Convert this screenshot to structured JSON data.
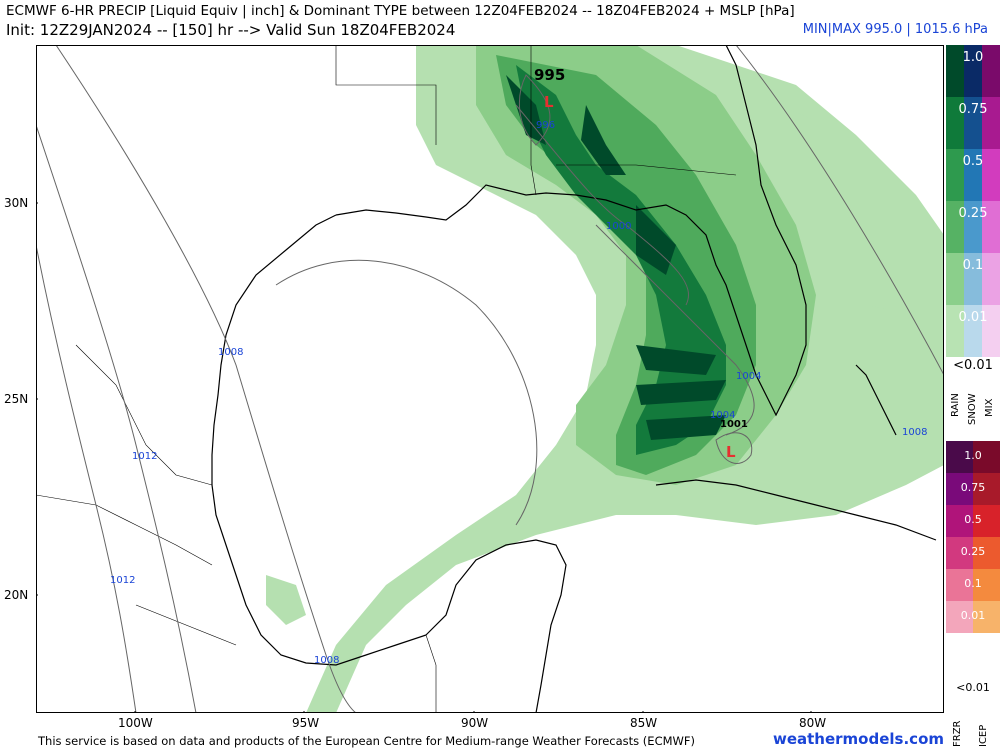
{
  "header": {
    "title": "ECMWF 6-HR PRECIP [Liquid Equiv | inch] & Dominant TYPE between 12Z04FEB2024 -- 18Z04FEB2024 + MSLP [hPa]",
    "init": "Init: 12Z29JAN2024 -- [150] hr --> Valid Sun 18Z04FEB2024",
    "minmax": "MIN|MAX 995.0 | 1015.6 hPa"
  },
  "map": {
    "lat_labels": [
      "30N",
      "25N",
      "20N"
    ],
    "lon_labels": [
      "100W",
      "95W",
      "90W",
      "85W",
      "80W"
    ],
    "pressure_labels": {
      "p995_big": "995",
      "p996": "996",
      "p1000": "1000",
      "p1004_a": "1004",
      "p1004_b": "1004",
      "p1001": "1001",
      "p1008_a": "1008",
      "p1008_b": "1008",
      "p1008_c": "1008",
      "p1012_a": "1012",
      "p1012_b": "1012"
    },
    "low_symbol": "L"
  },
  "legend": {
    "upper_values": [
      "1.0",
      "0.75",
      "0.5",
      "0.25",
      "0.1",
      "0.01"
    ],
    "upper_lt": "<0.01",
    "upper_types": [
      "RAIN",
      "SNOW",
      "MIX"
    ],
    "lower_values": [
      "1.0",
      "0.75",
      "0.5",
      "0.25",
      "0.1",
      "0.01"
    ],
    "lower_lt": "<0.01",
    "lower_types": [
      "FRZR",
      "ICEP"
    ],
    "colors": {
      "rain": [
        "#004a2a",
        "#0f7a3a",
        "#2e9a4e",
        "#56b264",
        "#8bcf8b",
        "#b8e3b3"
      ],
      "snow": [
        "#0a2a66",
        "#14508f",
        "#2277b5",
        "#4a99cc",
        "#86bcdc",
        "#b9d9ec"
      ],
      "mix": [
        "#7a0a6a",
        "#a81a90",
        "#d23cbe",
        "#e06ed4",
        "#eba2e4",
        "#f4cff0"
      ],
      "frzr": [
        "#4a0a4a",
        "#7a0a7a",
        "#b0147a",
        "#d2397f",
        "#ea7497",
        "#f3a6bb"
      ],
      "icep": [
        "#7a0a2a",
        "#a81a2a",
        "#d8222a",
        "#ec5a2e",
        "#f48a3e",
        "#f7b36a"
      ]
    }
  },
  "footer": {
    "credit": "This service is based on data and products of the European Centre for Medium-range Weather Forecasts (ECMWF)",
    "brand": "weathermodels.com"
  }
}
